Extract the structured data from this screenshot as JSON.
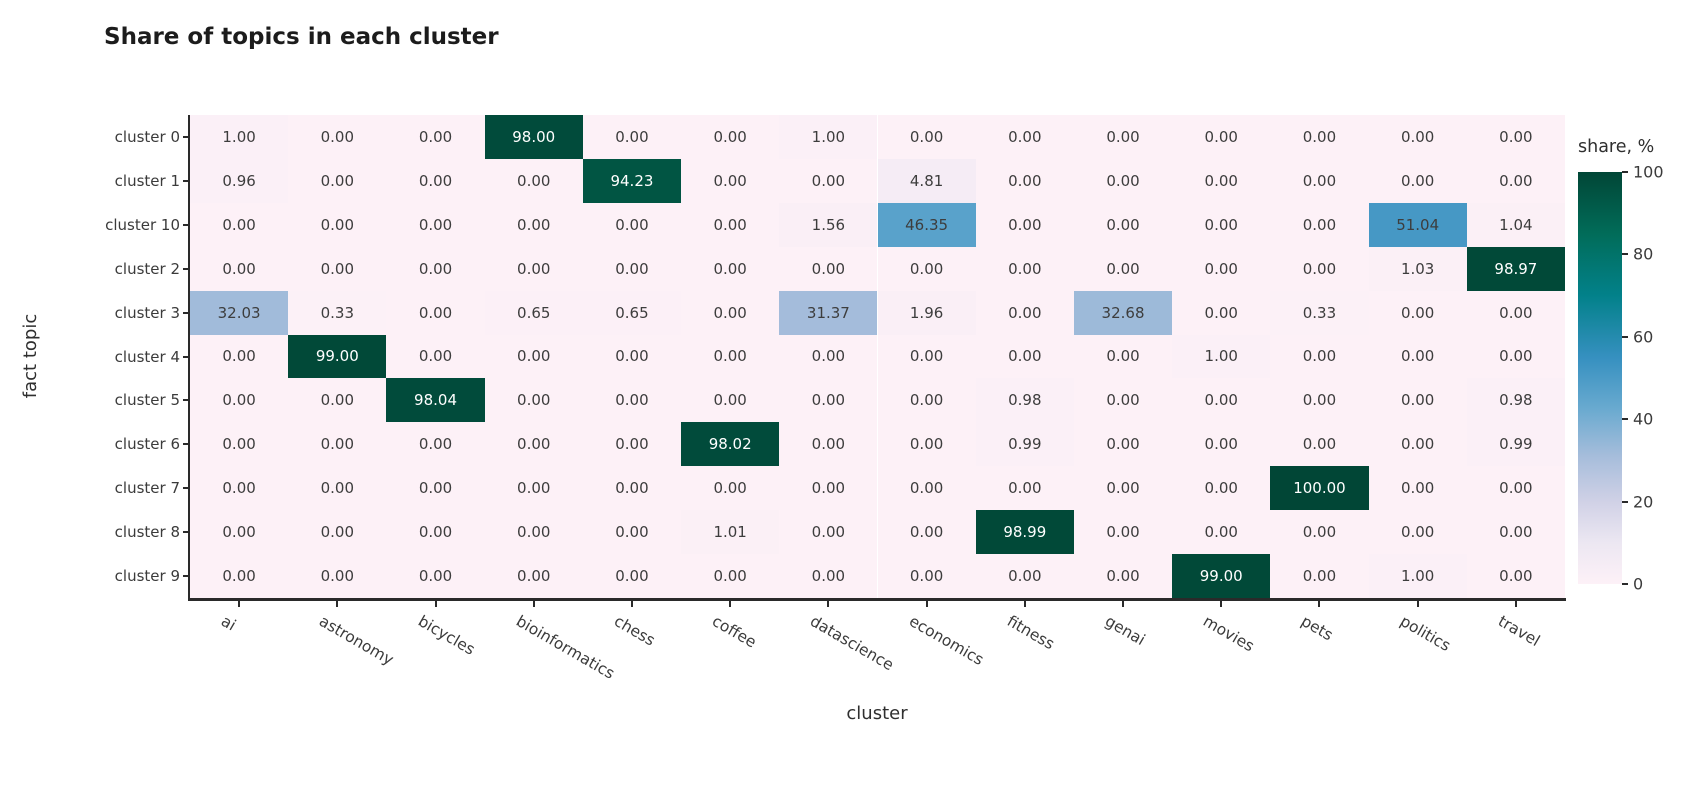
{
  "title": "Share of topics in each cluster",
  "chart_data": {
    "type": "heatmap",
    "title": "Share of topics in each cluster",
    "xlabel": "cluster",
    "ylabel": "fact topic",
    "x_categories": [
      "ai",
      "astronomy",
      "bicycles",
      "bioinformatics",
      "chess",
      "coffee",
      "datascience",
      "economics",
      "fitness",
      "genai",
      "movies",
      "pets",
      "politics",
      "travel"
    ],
    "y_categories": [
      "cluster 0",
      "cluster 1",
      "cluster 10",
      "cluster 2",
      "cluster 3",
      "cluster 4",
      "cluster 5",
      "cluster 6",
      "cluster 7",
      "cluster 8",
      "cluster 9"
    ],
    "values": [
      [
        1.0,
        0.0,
        0.0,
        98.0,
        0.0,
        0.0,
        1.0,
        0.0,
        0.0,
        0.0,
        0.0,
        0.0,
        0.0,
        0.0
      ],
      [
        0.96,
        0.0,
        0.0,
        0.0,
        94.23,
        0.0,
        0.0,
        4.81,
        0.0,
        0.0,
        0.0,
        0.0,
        0.0,
        0.0
      ],
      [
        0.0,
        0.0,
        0.0,
        0.0,
        0.0,
        0.0,
        1.56,
        46.35,
        0.0,
        0.0,
        0.0,
        0.0,
        51.04,
        1.04
      ],
      [
        0.0,
        0.0,
        0.0,
        0.0,
        0.0,
        0.0,
        0.0,
        0.0,
        0.0,
        0.0,
        0.0,
        0.0,
        1.03,
        98.97
      ],
      [
        32.03,
        0.33,
        0.0,
        0.65,
        0.65,
        0.0,
        31.37,
        1.96,
        0.0,
        32.68,
        0.0,
        0.33,
        0.0,
        0.0
      ],
      [
        0.0,
        99.0,
        0.0,
        0.0,
        0.0,
        0.0,
        0.0,
        0.0,
        0.0,
        0.0,
        1.0,
        0.0,
        0.0,
        0.0
      ],
      [
        0.0,
        0.0,
        98.04,
        0.0,
        0.0,
        0.0,
        0.0,
        0.0,
        0.98,
        0.0,
        0.0,
        0.0,
        0.0,
        0.98
      ],
      [
        0.0,
        0.0,
        0.0,
        0.0,
        0.0,
        98.02,
        0.0,
        0.0,
        0.99,
        0.0,
        0.0,
        0.0,
        0.0,
        0.99
      ],
      [
        0.0,
        0.0,
        0.0,
        0.0,
        0.0,
        0.0,
        0.0,
        0.0,
        0.0,
        0.0,
        0.0,
        100.0,
        0.0,
        0.0
      ],
      [
        0.0,
        0.0,
        0.0,
        0.0,
        0.0,
        1.01,
        0.0,
        0.0,
        98.99,
        0.0,
        0.0,
        0.0,
        0.0,
        0.0
      ],
      [
        0.0,
        0.0,
        0.0,
        0.0,
        0.0,
        0.0,
        0.0,
        0.0,
        0.0,
        0.0,
        99.0,
        0.0,
        1.0,
        0.0
      ]
    ],
    "value_format_decimals": 2,
    "zmin": 0,
    "zmax": 100,
    "colorbar": {
      "title": "share, %",
      "ticks": [
        0,
        20,
        40,
        60,
        80,
        100
      ]
    },
    "colorscale_name": "PuBuGn",
    "colorscale": [
      {
        "pos": 0.0,
        "color": "#fdf1f7"
      },
      {
        "pos": 0.1,
        "color": "#ece7f2"
      },
      {
        "pos": 0.2,
        "color": "#d0d1e6"
      },
      {
        "pos": 0.31,
        "color": "#a6bddb"
      },
      {
        "pos": 0.43,
        "color": "#67a9cf"
      },
      {
        "pos": 0.55,
        "color": "#3690c0"
      },
      {
        "pos": 0.7,
        "color": "#02818a"
      },
      {
        "pos": 0.85,
        "color": "#016c59"
      },
      {
        "pos": 1.0,
        "color": "#014636"
      }
    ],
    "dark_text_color": "#3d3d3d",
    "light_text_color": "#ffffff",
    "axis_color": "#2a2a2a",
    "grid": false,
    "legend_position": "right-colorbar"
  }
}
